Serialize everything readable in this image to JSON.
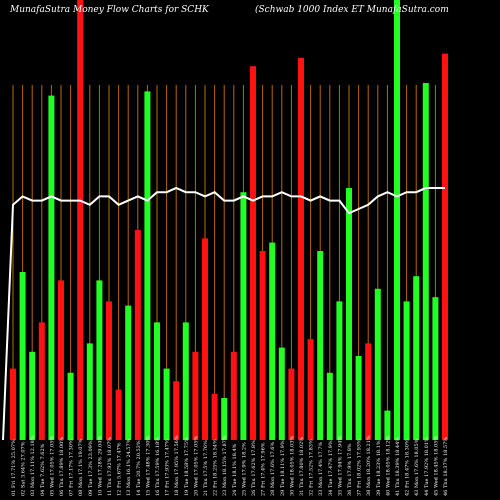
{
  "title_left": "MunafaSutra  Money Flow  Charts for SCHK",
  "title_right": "(Schwab 1000   Index ET   MunafaSutra.com",
  "chart_data": {
    "type": "bar",
    "colors": {
      "up": "#22ff22",
      "down": "#ff1111",
      "line": "#ffffff",
      "vline": "#b36b00",
      "background": "#000000"
    },
    "ylim": [
      0,
      100
    ],
    "grid": true,
    "categories": [
      "01 Fri 17.71% 25.07%",
      "02 Sat 3.64% 27.07%",
      "03 Mon 17.11% 12.18%",
      "04 Tue 7.62% 7.62%",
      "05 Wed 17.05% 17.05%",
      "06 Thu 17.89% 18.00%",
      "07 Fri 17.17% 17.30%",
      "08 Mon 17.1% 19.07%",
      "09 Tue 17.3% 23.09%",
      "10 Wed 17.28% 29.04%",
      "11 Thu 17.92% 18.07%",
      "12 Fri 5.67% 17.47%",
      "13 Mon 16.1% 24.57%",
      "14 Tue 20.7% 20.53%",
      "15 Wed 17.48% 17.30%",
      "16 Thu 17.59% 16.18%",
      "17 Fri 17.93% 17.47%",
      "18 Mon 17.95% 17.56%",
      "19 Tue 18.58% 17.75%",
      "20 Wed 17.05% 17.05%",
      "21 Thu 17.5% 17.76%",
      "22 Fri 18.25% 18.54%",
      "23 Mon 18.15% 17.87%",
      "24 Tue 18.1% 18.4%",
      "25 Wed 17.9% 18.2%",
      "26 Thu 17.62% 17.8%",
      "27 Fri 17.4% 17.96%",
      "28 Mon 17.6% 17.6%",
      "29 Tue 18.11% 17.9%",
      "30 Wed 18.05% 18.03%",
      "31 Thu 17.80% 18.02%",
      "32 Fri 17.52% 17.83%",
      "33 Mon 17.4% 17.7%",
      "34 Tue 17.47% 17.9%",
      "35 Wed 17.94% 17.94%",
      "36 Thu 17.9% 17.8%",
      "37 Fri 18.02% 17.93%",
      "38 Mon 18.20% 18.21%",
      "39 Tue 18.23% 18.1%",
      "40 Wed 18.05% 18.12%",
      "41 Thu 18.39% 18.44%",
      "42 Fri 18.47% 18.30%",
      "43 Mon 17.6% 18.05%",
      "44 Tue 17.92% 18.01%",
      "45 Wed 18.45% 18.05%",
      "46 Thu 18.37% 18.57%"
    ],
    "bars": [
      {
        "v": 17,
        "c": "down"
      },
      {
        "v": 40,
        "c": "up"
      },
      {
        "v": 21,
        "c": "up"
      },
      {
        "v": 28,
        "c": "down"
      },
      {
        "v": 82,
        "c": "up"
      },
      {
        "v": 38,
        "c": "down"
      },
      {
        "v": 16,
        "c": "up"
      },
      {
        "v": 94,
        "c": "down"
      },
      {
        "v": 23,
        "c": "up"
      },
      {
        "v": 38,
        "c": "up"
      },
      {
        "v": 33,
        "c": "down"
      },
      {
        "v": 12,
        "c": "down"
      },
      {
        "v": 32,
        "c": "up"
      },
      {
        "v": 50,
        "c": "down"
      },
      {
        "v": 83,
        "c": "up"
      },
      {
        "v": 28,
        "c": "up"
      },
      {
        "v": 17,
        "c": "up"
      },
      {
        "v": 14,
        "c": "down"
      },
      {
        "v": 28,
        "c": "up"
      },
      {
        "v": 21,
        "c": "down"
      },
      {
        "v": 48,
        "c": "down"
      },
      {
        "v": 11,
        "c": "down"
      },
      {
        "v": 10,
        "c": "up"
      },
      {
        "v": 21,
        "c": "down"
      },
      {
        "v": 59,
        "c": "up"
      },
      {
        "v": 89,
        "c": "down"
      },
      {
        "v": 45,
        "c": "down"
      },
      {
        "v": 47,
        "c": "up"
      },
      {
        "v": 22,
        "c": "up"
      },
      {
        "v": 17,
        "c": "down"
      },
      {
        "v": 91,
        "c": "down"
      },
      {
        "v": 24,
        "c": "down"
      },
      {
        "v": 45,
        "c": "up"
      },
      {
        "v": 16,
        "c": "up"
      },
      {
        "v": 33,
        "c": "up"
      },
      {
        "v": 60,
        "c": "up"
      },
      {
        "v": 20,
        "c": "up"
      },
      {
        "v": 23,
        "c": "down"
      },
      {
        "v": 36,
        "c": "up"
      },
      {
        "v": 7,
        "c": "up"
      },
      {
        "v": 94,
        "c": "up"
      },
      {
        "v": 33,
        "c": "up"
      },
      {
        "v": 39,
        "c": "up"
      },
      {
        "v": 85,
        "c": "up"
      },
      {
        "v": 34,
        "c": "up"
      },
      {
        "v": 92,
        "c": "down"
      }
    ],
    "bar_full_height": [
      false,
      false,
      false,
      false,
      false,
      false,
      false,
      true,
      false,
      false,
      false,
      false,
      false,
      false,
      false,
      false,
      false,
      false,
      false,
      false,
      false,
      false,
      false,
      false,
      false,
      false,
      false,
      false,
      false,
      false,
      false,
      false,
      false,
      false,
      false,
      false,
      false,
      false,
      false,
      false,
      true,
      false,
      false,
      false,
      false,
      false
    ],
    "line": [
      56,
      58,
      57,
      57,
      58,
      57,
      57,
      57,
      56,
      58,
      58,
      56,
      57,
      58,
      57,
      59,
      59,
      60,
      59,
      59,
      58,
      59,
      57,
      57,
      58,
      57,
      58,
      58,
      59,
      58,
      58,
      57,
      58,
      57,
      57,
      54,
      55,
      56,
      58,
      59,
      58,
      59,
      59,
      60,
      60,
      60
    ]
  }
}
